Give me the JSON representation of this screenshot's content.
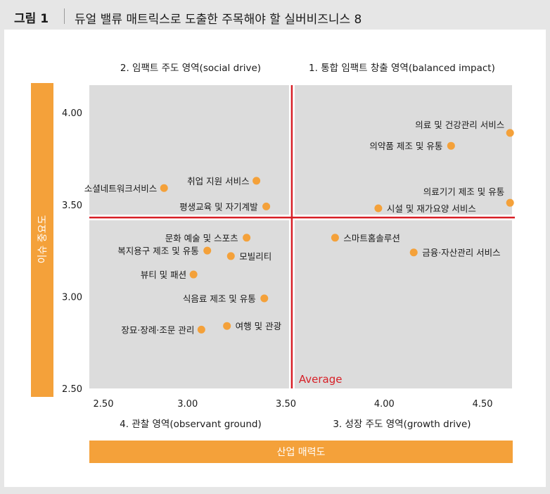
{
  "header": {
    "figure_label": "그림 1",
    "title": "듀얼 밸류 매트릭스로 도출한 주목해야 할 실버비즈니스 8"
  },
  "colors": {
    "point": "#f4a13a",
    "axis_bar": "#f4a13a",
    "quad": "#dcdcdc",
    "average": "#d71f26"
  },
  "chart_data": {
    "type": "scatter",
    "title": "듀얼 밸류 매트릭스로 도출한 주목해야 할 실버비즈니스 8",
    "xlabel": "산업 매력도",
    "ylabel": "이슈 중요도",
    "xlim": [
      2.5,
      4.65
    ],
    "ylim": [
      2.5,
      4.15
    ],
    "x_ticks": [
      "2.50",
      "3.00",
      "3.50",
      "4.00",
      "4.50"
    ],
    "y_ticks": [
      "4.00",
      "3.50",
      "3.00",
      "2.50"
    ],
    "average_label": "Average",
    "average": {
      "x": 3.53,
      "y": 3.43
    },
    "quadrants": {
      "q1": "1. 통합 임팩트 창출 영역(balanced impact)",
      "q2": "2. 임팩트 주도 영역(social drive)",
      "q3": "3. 성장 주도 영역(growth drive)",
      "q4": "4. 관찰 영역(observant ground)"
    },
    "points": [
      {
        "label": "의료 및 건강관리 서비스",
        "x": 4.64,
        "y": 3.89
      },
      {
        "label": "의약품 제조 및 유통",
        "x": 4.34,
        "y": 3.82
      },
      {
        "label": "의료기기 제조 및 유통",
        "x": 4.64,
        "y": 3.51
      },
      {
        "label": "시설 및 재가요양 서비스",
        "x": 3.97,
        "y": 3.48
      },
      {
        "label": "취업 지원 서비스",
        "x": 3.35,
        "y": 3.63
      },
      {
        "label": "소셜네트워크서비스",
        "x": 2.88,
        "y": 3.59
      },
      {
        "label": "평생교육 및 자기계발",
        "x": 3.4,
        "y": 3.49
      },
      {
        "label": "스마트홈솔루션",
        "x": 3.75,
        "y": 3.32
      },
      {
        "label": "금융·자산관리 서비스",
        "x": 4.15,
        "y": 3.24
      },
      {
        "label": "문화 예술 및 스포츠",
        "x": 3.3,
        "y": 3.32
      },
      {
        "label": "복지용구 제조 및 유통",
        "x": 3.1,
        "y": 3.25
      },
      {
        "label": "모빌리티",
        "x": 3.22,
        "y": 3.22
      },
      {
        "label": "뷰티 및 패션",
        "x": 3.03,
        "y": 3.12
      },
      {
        "label": "식음료 제조 및 유통",
        "x": 3.39,
        "y": 2.99
      },
      {
        "label": "여행 및 관광",
        "x": 3.2,
        "y": 2.84
      },
      {
        "label": "장묘·장례·조문 관리",
        "x": 3.07,
        "y": 2.82
      }
    ]
  }
}
